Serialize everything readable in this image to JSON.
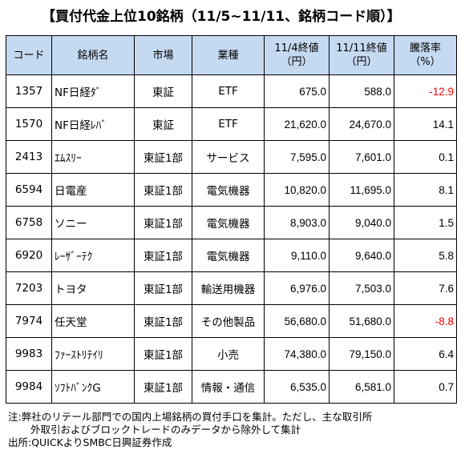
{
  "title": "【買付代金上位10銘柄（11/5~11/11、銘柄コード順）】",
  "table": {
    "headers": {
      "code": "コード",
      "name": "銘柄名",
      "market": "市場",
      "industry": "業種",
      "price_1_line1": "11/4終値",
      "price_1_line2": "（円）",
      "price_2_line1": "11/11終値",
      "price_2_line2": "（円）",
      "change_line1": "騰落率",
      "change_line2": "（%）"
    },
    "rows": [
      {
        "code": "1357",
        "name": "NF日経ﾀﾞ",
        "market": "東証",
        "industry": "ETF",
        "price_1": "675.0",
        "price_2": "588.0",
        "change": "-12.9",
        "change_color": "#ff0000"
      },
      {
        "code": "1570",
        "name": "NF日経ﾚﾊﾞ",
        "market": "東証",
        "industry": "ETF",
        "price_1": "21,620.0",
        "price_2": "24,670.0",
        "change": "14.1",
        "change_color": "#000000"
      },
      {
        "code": "2413",
        "name": "ｴﾑｽﾘｰ",
        "market": "東証1部",
        "industry": "サービス",
        "price_1": "7,595.0",
        "price_2": "7,601.0",
        "change": "0.1",
        "change_color": "#000000"
      },
      {
        "code": "6594",
        "name": "日電産",
        "market": "東証1部",
        "industry": "電気機器",
        "price_1": "10,820.0",
        "price_2": "11,695.0",
        "change": "8.1",
        "change_color": "#000000"
      },
      {
        "code": "6758",
        "name": "ソニー",
        "market": "東証1部",
        "industry": "電気機器",
        "price_1": "8,903.0",
        "price_2": "9,040.0",
        "change": "1.5",
        "change_color": "#000000"
      },
      {
        "code": "6920",
        "name": "ﾚｰｻﾞｰﾃｸ",
        "market": "東証1部",
        "industry": "電気機器",
        "price_1": "9,110.0",
        "price_2": "9,640.0",
        "change": "5.8",
        "change_color": "#000000"
      },
      {
        "code": "7203",
        "name": "トヨタ",
        "market": "東証1部",
        "industry": "輸送用機器",
        "price_1": "6,976.0",
        "price_2": "7,503.0",
        "change": "7.6",
        "change_color": "#000000"
      },
      {
        "code": "7974",
        "name": "任天堂",
        "market": "東証1部",
        "industry": "その他製品",
        "price_1": "56,680.0",
        "price_2": "51,680.0",
        "change": "-8.8",
        "change_color": "#ff0000"
      },
      {
        "code": "9983",
        "name": "ﾌｧｰｽﾄﾘﾃｲﾘ",
        "market": "東証1部",
        "industry": "小売",
        "price_1": "74,380.0",
        "price_2": "79,150.0",
        "change": "6.4",
        "change_color": "#000000"
      },
      {
        "code": "9984",
        "name": "ｿﾌﾄﾊﾞﾝｸG",
        "market": "東証1部",
        "industry": "情報・通信",
        "price_1": "6,535.0",
        "price_2": "6,581.0",
        "change": "0.7",
        "change_color": "#000000"
      }
    ]
  },
  "notes": {
    "line1": "注:弊社のリテール部門での国内上場銘柄の買付手口を集計。ただし、主な取引所",
    "line2": "外取引およびブロックトレードのみデータから除外して集計",
    "line3": "出所:QUICKよりSMBC日興証券作成"
  }
}
